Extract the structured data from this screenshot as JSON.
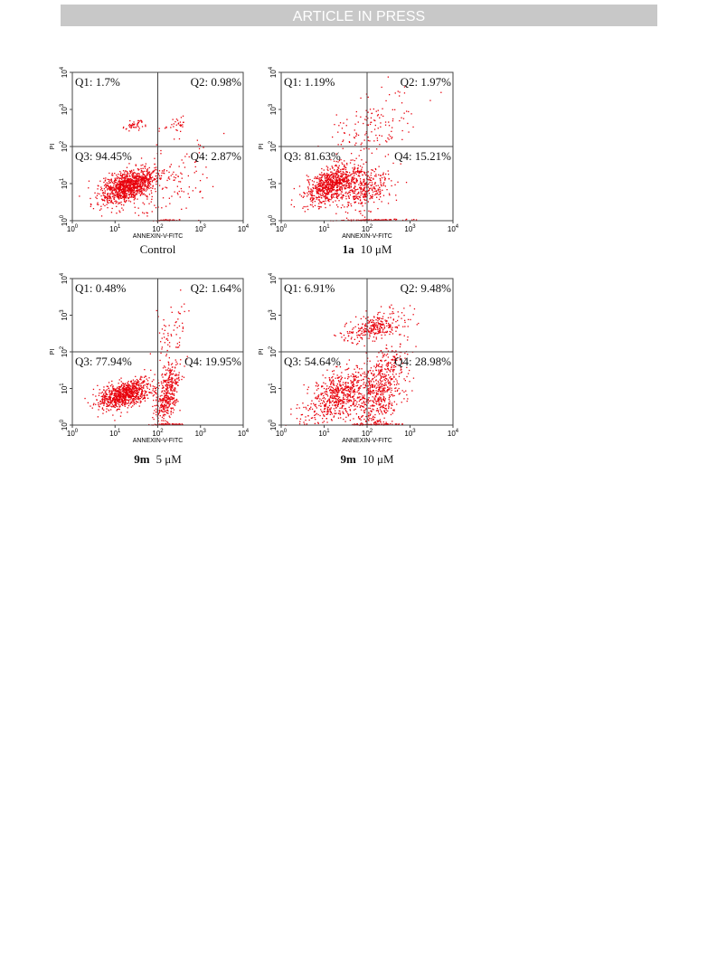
{
  "header": {
    "title": "ARTICLE IN PRESS"
  },
  "axes": {
    "x_label": "ANNEXIN-V-FITC",
    "y_label": "PI",
    "ticks": [
      {
        "base": "10",
        "exp": "0"
      },
      {
        "base": "10",
        "exp": "1"
      },
      {
        "base": "10",
        "exp": "2"
      },
      {
        "base": "10",
        "exp": "3"
      },
      {
        "base": "10",
        "exp": "4"
      }
    ]
  },
  "panels": [
    {
      "quadrants": [
        "Q1: 1.7%",
        "Q2: 0.98%",
        "Q3: 94.45%",
        "Q4: 2.87%"
      ],
      "caption": {
        "text": "Control"
      }
    },
    {
      "quadrants": [
        "Q1: 1.19%",
        "Q2: 1.97%",
        "Q3: 81.63%",
        "Q4: 15.21%"
      ],
      "caption": {
        "bold": "1a",
        "text": "10 μM"
      }
    },
    {
      "quadrants": [
        "Q1: 0.48%",
        "Q2: 1.64%",
        "Q3: 77.94%",
        "Q4: 19.95%"
      ],
      "caption": {
        "bold": "9m",
        "text": "5 μM"
      }
    },
    {
      "quadrants": [
        "Q1: 6.91%",
        "Q2: 9.48%",
        "Q3: 54.64%",
        "Q4: 28.98%"
      ],
      "caption": {
        "bold": "9m",
        "text": "10 μM"
      }
    }
  ]
}
